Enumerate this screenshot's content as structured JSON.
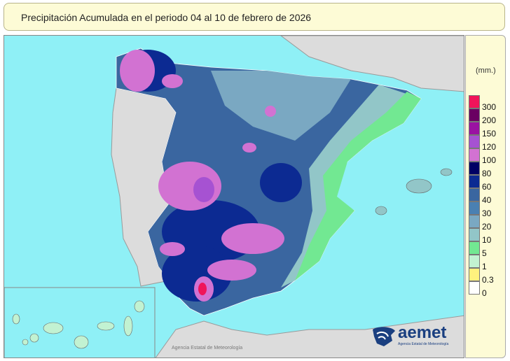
{
  "title": "Precipitación Acumulada en el periodo 04 al 10 de febrero de 2026",
  "legend": {
    "unit": "(mm.)",
    "classes": [
      {
        "label": "300",
        "color": "#f0145a"
      },
      {
        "label": "200",
        "color": "#6a0062"
      },
      {
        "label": "150",
        "color": "#9a12a2"
      },
      {
        "label": "120",
        "color": "#a652d2"
      },
      {
        "label": "100",
        "color": "#d272d2"
      },
      {
        "label": "80",
        "color": "#000064"
      },
      {
        "label": "60",
        "color": "#0c2a92"
      },
      {
        "label": "40",
        "color": "#3a66a0"
      },
      {
        "label": "30",
        "color": "#4a80b2"
      },
      {
        "label": "20",
        "color": "#7aa8c2"
      },
      {
        "label": "10",
        "color": "#92c6c8"
      },
      {
        "label": "5",
        "color": "#72e892"
      },
      {
        "label": "1",
        "color": "#c2f2d2"
      },
      {
        "label": "0.3",
        "color": "#fff27e"
      },
      {
        "label": "0",
        "color": "#ffffff"
      }
    ]
  },
  "credit": "Agencia Estatal de Meteorología",
  "logo": {
    "text": "aemet",
    "subtitle": "Agencia Estatal de Meteorología"
  },
  "colors": {
    "sea": "#8ff0f6",
    "land": "#dcdcdc",
    "panel": "#fdfbd6"
  }
}
